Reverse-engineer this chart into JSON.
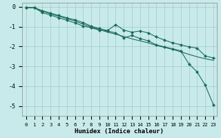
{
  "xlabel": "Humidex (Indice chaleur)",
  "bg_color": "#c8eaea",
  "grid_color": "#a0c8c8",
  "line_color": "#1a6b5a",
  "xlim_min": -0.5,
  "xlim_max": 23.4,
  "ylim_min": -5.5,
  "ylim_max": 0.2,
  "x": [
    0,
    1,
    2,
    3,
    4,
    5,
    6,
    7,
    8,
    9,
    10,
    11,
    12,
    13,
    14,
    15,
    16,
    17,
    18,
    19,
    20,
    21,
    22,
    23
  ],
  "line1": [
    -0.05,
    -0.05,
    -0.22,
    -0.36,
    -0.48,
    -0.6,
    -0.72,
    -0.88,
    -1.02,
    -1.15,
    -1.28,
    -1.38,
    -1.5,
    -1.62,
    -1.72,
    -1.82,
    -1.95,
    -2.05,
    -2.15,
    -2.27,
    -2.4,
    -2.52,
    -2.62,
    -2.7
  ],
  "line2": [
    -0.05,
    -0.05,
    -0.2,
    -0.32,
    -0.44,
    -0.56,
    -0.66,
    -0.8,
    -0.98,
    -1.1,
    -1.2,
    -0.9,
    -1.18,
    -1.28,
    -1.22,
    -1.32,
    -1.52,
    -1.68,
    -1.82,
    -1.92,
    -2.02,
    -2.08,
    -2.48,
    -2.58
  ],
  "line3": [
    -0.05,
    -0.05,
    -0.3,
    -0.42,
    -0.56,
    -0.68,
    -0.82,
    -0.97,
    -1.06,
    -1.18,
    -1.22,
    -1.32,
    -1.56,
    -1.45,
    -1.6,
    -1.72,
    -1.92,
    -2.02,
    -2.12,
    -2.22,
    -2.88,
    -3.28,
    -3.95,
    -4.93
  ],
  "yticks": [
    0,
    -1,
    -2,
    -3,
    -4,
    -5
  ],
  "xticks": [
    0,
    1,
    2,
    3,
    4,
    5,
    6,
    7,
    8,
    9,
    10,
    11,
    12,
    13,
    14,
    15,
    16,
    17,
    18,
    19,
    20,
    21,
    22,
    23
  ],
  "xtick_labels": [
    "0",
    "1",
    "2",
    "3",
    "4",
    "5",
    "6",
    "7",
    "8",
    "9",
    "10",
    "11",
    "12",
    "13",
    "14",
    "15",
    "16",
    "17",
    "18",
    "19",
    "20",
    "21",
    "22",
    "23"
  ],
  "tick_fontsize": 5.2,
  "label_fontsize": 6.5,
  "marker_size": 2.2,
  "line_width": 0.8
}
